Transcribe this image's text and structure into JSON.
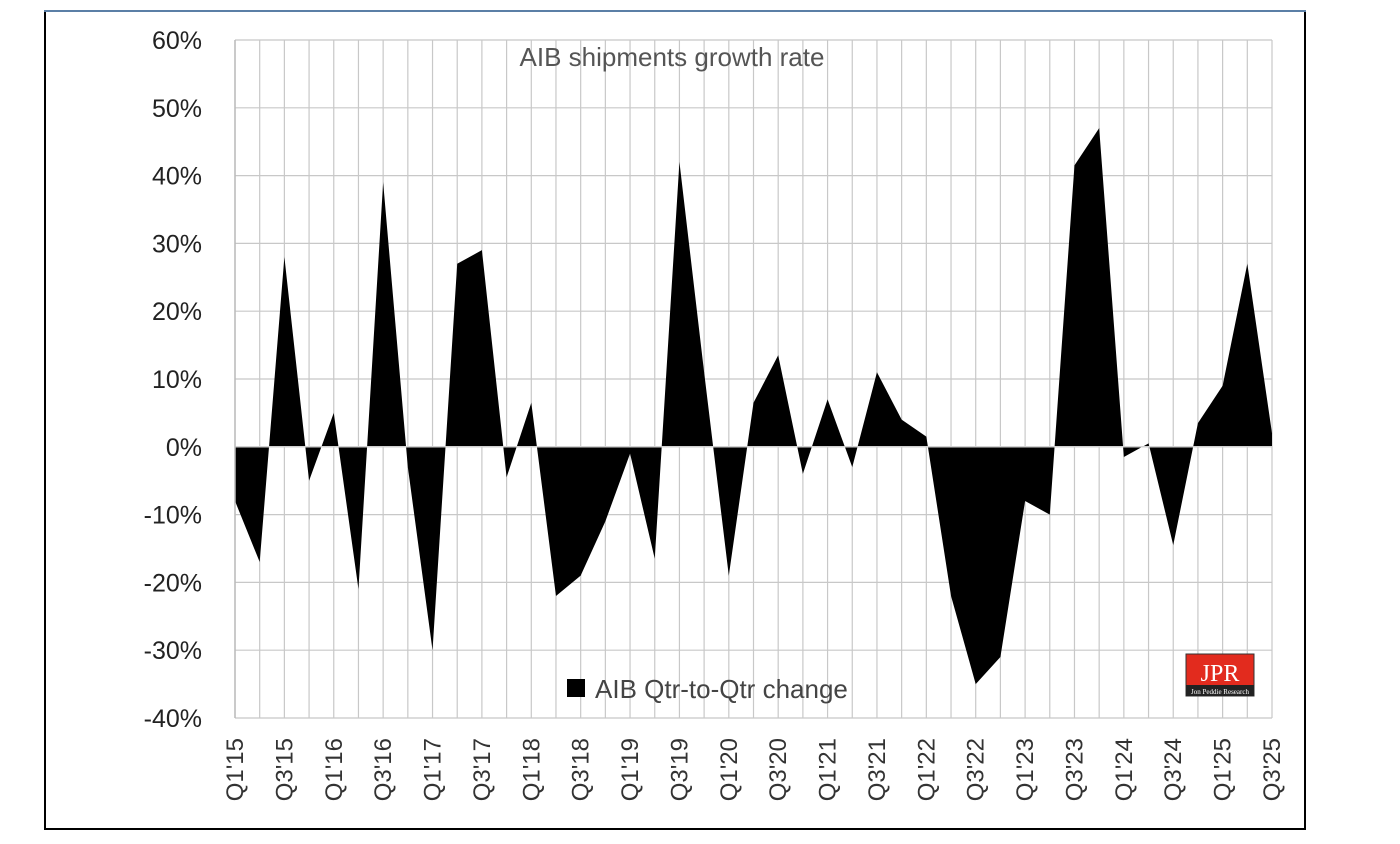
{
  "chart_data": {
    "type": "area",
    "title": "AIB shipments growth rate",
    "xlabel": "",
    "ylabel": "",
    "ylim": [
      -0.4,
      0.6
    ],
    "yticks": [
      0.6,
      0.5,
      0.4,
      0.3,
      0.2,
      0.1,
      0.0,
      -0.1,
      -0.2,
      -0.3,
      -0.4
    ],
    "ytick_labels": [
      "60%",
      "50%",
      "40%",
      "30%",
      "20%",
      "10%",
      "0%",
      "-10%",
      "-20%",
      "-30%",
      "-40%"
    ],
    "categories": [
      "Q1'15",
      "Q2'15",
      "Q3'15",
      "Q4'15",
      "Q1'16",
      "Q2'16",
      "Q3'16",
      "Q4'16",
      "Q1'17",
      "Q2'17",
      "Q3'17",
      "Q4'17",
      "Q1'18",
      "Q2'18",
      "Q3'18",
      "Q4'18",
      "Q1'19",
      "Q2'19",
      "Q3'19",
      "Q4'19",
      "Q1'20",
      "Q2'20",
      "Q3'20",
      "Q4'20",
      "Q1'21",
      "Q2'21",
      "Q3'21",
      "Q4'21",
      "Q1'22",
      "Q2'22",
      "Q3'22",
      "Q4'22",
      "Q1'23",
      "Q2'23",
      "Q3'23",
      "Q4'23",
      "Q1'24",
      "Q2'24",
      "Q3'24",
      "Q4'24",
      "Q1'25",
      "Q2'25",
      "Q3'25"
    ],
    "xtick_labels": [
      "Q1'15",
      "Q3'15",
      "Q1'16",
      "Q3'16",
      "Q1'17",
      "Q3'17",
      "Q1'18",
      "Q3'18",
      "Q1'19",
      "Q3'19",
      "Q1'20",
      "Q3'20",
      "Q1'21",
      "Q3'21",
      "Q1'22",
      "Q3'22",
      "Q1'23",
      "Q3'23",
      "Q1'24",
      "Q3'24",
      "Q1'25",
      "Q3'25"
    ],
    "series": [
      {
        "name": "AIB Qtr-to-Qtr change",
        "color": "#000000",
        "values": [
          -0.08,
          -0.17,
          0.28,
          -0.05,
          0.05,
          -0.21,
          0.39,
          -0.03,
          -0.3,
          0.27,
          0.29,
          -0.045,
          0.065,
          -0.22,
          -0.19,
          -0.11,
          -0.01,
          -0.165,
          0.42,
          0.11,
          -0.19,
          0.065,
          0.135,
          -0.04,
          0.07,
          -0.03,
          0.11,
          0.04,
          0.015,
          -0.22,
          -0.35,
          -0.31,
          -0.08,
          -0.1,
          0.415,
          0.47,
          -0.015,
          0.005,
          -0.145,
          0.035,
          0.09,
          0.27,
          0.02
        ]
      }
    ],
    "grid": true,
    "legend_position": "bottom-center",
    "logo_text": "JPR",
    "logo_subtext": "Jon Peddie Research"
  }
}
